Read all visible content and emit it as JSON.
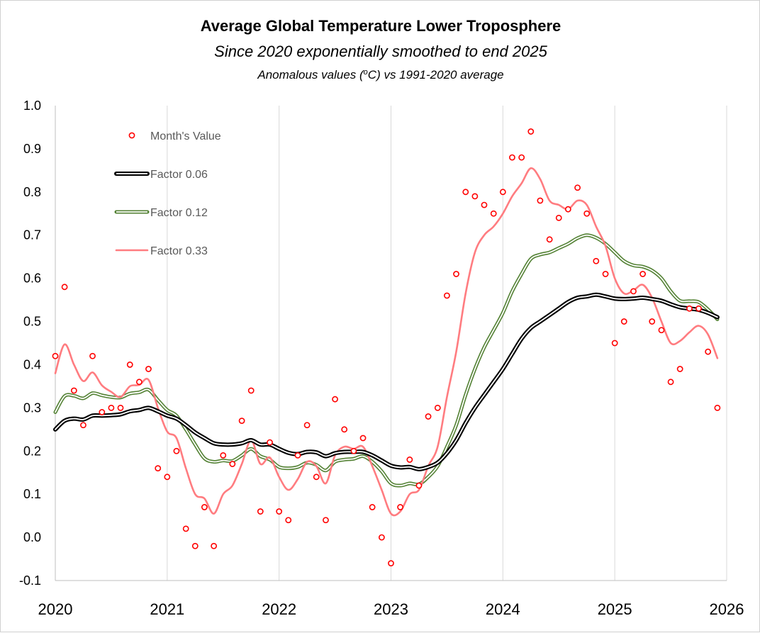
{
  "chart_data": {
    "type": "scatter+line",
    "title": "Average Global Temperature Lower Troposphere",
    "subtitle": "Since 2020 exponentially smoothed to end 2025",
    "subtitle2_prefix": "Anomalous values (",
    "subtitle2_unit_sup": "o",
    "subtitle2_unit": "C",
    "subtitle2_suffix": ") vs 1991-2020 average",
    "xlabel": "",
    "ylabel": "",
    "xlim": [
      2020,
      2026
    ],
    "ylim": [
      -0.1,
      1.0
    ],
    "x_ticks": [
      "2020",
      "2021",
      "2022",
      "2023",
      "2024",
      "2025",
      "2026"
    ],
    "y_ticks": [
      "1.0",
      "0.9",
      "0.8",
      "0.7",
      "0.6",
      "0.5",
      "0.4",
      "0.3",
      "0.2",
      "0.1",
      "0.0",
      "-0.1"
    ],
    "grid": "vertical",
    "legend_position": "top-left",
    "colors": {
      "points": "#ff0000",
      "factor_006": "#000000",
      "factor_012": "#548235",
      "factor_033": "#ff7c80",
      "grid": "#d9d9d9",
      "axis": "#bfbfbf"
    },
    "series": [
      {
        "name": "Month's Value",
        "kind": "points",
        "x": [
          2020.0,
          2020.083,
          2020.167,
          2020.25,
          2020.333,
          2020.417,
          2020.5,
          2020.583,
          2020.667,
          2020.75,
          2020.833,
          2020.917,
          2021.0,
          2021.083,
          2021.167,
          2021.25,
          2021.333,
          2021.417,
          2021.5,
          2021.583,
          2021.667,
          2021.75,
          2021.833,
          2021.917,
          2022.0,
          2022.083,
          2022.167,
          2022.25,
          2022.333,
          2022.417,
          2022.5,
          2022.583,
          2022.667,
          2022.75,
          2022.833,
          2022.917,
          2023.0,
          2023.083,
          2023.167,
          2023.25,
          2023.333,
          2023.417,
          2023.5,
          2023.583,
          2023.667,
          2023.75,
          2023.833,
          2023.917,
          2024.0,
          2024.083,
          2024.167,
          2024.25,
          2024.333,
          2024.417,
          2024.5,
          2024.583,
          2024.667,
          2024.75,
          2024.833,
          2024.917,
          2025.0,
          2025.083,
          2025.167,
          2025.25,
          2025.333,
          2025.417,
          2025.5,
          2025.583,
          2025.667,
          2025.75,
          2025.833,
          2025.917
        ],
        "values": [
          0.42,
          0.58,
          0.34,
          0.26,
          0.42,
          0.29,
          0.3,
          0.3,
          0.4,
          0.36,
          0.39,
          0.16,
          0.14,
          0.2,
          0.02,
          -0.02,
          0.07,
          -0.02,
          0.19,
          0.17,
          0.27,
          0.34,
          0.06,
          0.22,
          0.06,
          0.04,
          0.19,
          0.26,
          0.14,
          0.04,
          0.32,
          0.25,
          0.2,
          0.23,
          0.07,
          0.0,
          -0.06,
          0.07,
          0.18,
          0.12,
          0.28,
          0.3,
          0.56,
          0.61,
          0.8,
          0.79,
          0.77,
          0.75,
          0.8,
          0.88,
          0.88,
          0.94,
          0.78,
          0.69,
          0.74,
          0.76,
          0.81,
          0.75,
          0.64,
          0.61,
          0.45,
          0.5,
          0.57,
          0.61,
          0.5,
          0.48,
          0.36,
          0.39,
          0.53,
          0.53,
          0.43,
          0.3
        ]
      },
      {
        "name": "Factor 0.06",
        "kind": "line",
        "x": [
          2020.0,
          2020.083,
          2020.167,
          2020.25,
          2020.333,
          2020.417,
          2020.5,
          2020.583,
          2020.667,
          2020.75,
          2020.833,
          2020.917,
          2021.0,
          2021.083,
          2021.167,
          2021.25,
          2021.333,
          2021.417,
          2021.5,
          2021.583,
          2021.667,
          2021.75,
          2021.833,
          2021.917,
          2022.0,
          2022.083,
          2022.167,
          2022.25,
          2022.333,
          2022.417,
          2022.5,
          2022.583,
          2022.667,
          2022.75,
          2022.833,
          2022.917,
          2023.0,
          2023.083,
          2023.167,
          2023.25,
          2023.333,
          2023.417,
          2023.5,
          2023.583,
          2023.667,
          2023.75,
          2023.833,
          2023.917,
          2024.0,
          2024.083,
          2024.167,
          2024.25,
          2024.333,
          2024.417,
          2024.5,
          2024.583,
          2024.667,
          2024.75,
          2024.833,
          2024.917,
          2025.0,
          2025.083,
          2025.167,
          2025.25,
          2025.333,
          2025.417,
          2025.5,
          2025.583,
          2025.667,
          2025.75,
          2025.833,
          2025.917
        ],
        "values": [
          0.25,
          0.27,
          0.275,
          0.273,
          0.282,
          0.282,
          0.283,
          0.285,
          0.292,
          0.295,
          0.3,
          0.292,
          0.282,
          0.275,
          0.26,
          0.243,
          0.23,
          0.218,
          0.215,
          0.215,
          0.218,
          0.225,
          0.215,
          0.215,
          0.205,
          0.196,
          0.193,
          0.198,
          0.197,
          0.188,
          0.195,
          0.198,
          0.198,
          0.198,
          0.19,
          0.178,
          0.166,
          0.162,
          0.163,
          0.158,
          0.163,
          0.173,
          0.195,
          0.225,
          0.265,
          0.3,
          0.33,
          0.36,
          0.39,
          0.425,
          0.46,
          0.485,
          0.5,
          0.515,
          0.53,
          0.545,
          0.555,
          0.558,
          0.562,
          0.558,
          0.553,
          0.552,
          0.553,
          0.555,
          0.552,
          0.548,
          0.54,
          0.533,
          0.53,
          0.527,
          0.52,
          0.51
        ]
      },
      {
        "name": "Factor 0.12",
        "kind": "line",
        "x": [
          2020.0,
          2020.083,
          2020.167,
          2020.25,
          2020.333,
          2020.417,
          2020.5,
          2020.583,
          2020.667,
          2020.75,
          2020.833,
          2020.917,
          2021.0,
          2021.083,
          2021.167,
          2021.25,
          2021.333,
          2021.417,
          2021.5,
          2021.583,
          2021.667,
          2021.75,
          2021.833,
          2021.917,
          2022.0,
          2022.083,
          2022.167,
          2022.25,
          2022.333,
          2022.417,
          2022.5,
          2022.583,
          2022.667,
          2022.75,
          2022.833,
          2022.917,
          2023.0,
          2023.083,
          2023.167,
          2023.25,
          2023.333,
          2023.417,
          2023.5,
          2023.583,
          2023.667,
          2023.75,
          2023.833,
          2023.917,
          2024.0,
          2024.083,
          2024.167,
          2024.25,
          2024.333,
          2024.417,
          2024.5,
          2024.583,
          2024.667,
          2024.75,
          2024.833,
          2024.917,
          2025.0,
          2025.083,
          2025.167,
          2025.25,
          2025.333,
          2025.417,
          2025.5,
          2025.583,
          2025.667,
          2025.75,
          2025.833,
          2025.917
        ],
        "values": [
          0.29,
          0.327,
          0.328,
          0.322,
          0.334,
          0.329,
          0.325,
          0.324,
          0.333,
          0.336,
          0.342,
          0.318,
          0.295,
          0.282,
          0.25,
          0.215,
          0.183,
          0.175,
          0.178,
          0.177,
          0.19,
          0.205,
          0.188,
          0.18,
          0.163,
          0.16,
          0.163,
          0.173,
          0.168,
          0.155,
          0.175,
          0.18,
          0.182,
          0.188,
          0.175,
          0.153,
          0.125,
          0.12,
          0.125,
          0.123,
          0.14,
          0.165,
          0.21,
          0.26,
          0.33,
          0.39,
          0.44,
          0.48,
          0.52,
          0.57,
          0.61,
          0.645,
          0.655,
          0.66,
          0.67,
          0.68,
          0.693,
          0.7,
          0.694,
          0.68,
          0.66,
          0.64,
          0.63,
          0.627,
          0.618,
          0.6,
          0.57,
          0.548,
          0.547,
          0.545,
          0.528,
          0.505
        ]
      },
      {
        "name": "Factor 0.33",
        "kind": "line",
        "x": [
          2020.0,
          2020.083,
          2020.167,
          2020.25,
          2020.333,
          2020.417,
          2020.5,
          2020.583,
          2020.667,
          2020.75,
          2020.833,
          2020.917,
          2021.0,
          2021.083,
          2021.167,
          2021.25,
          2021.333,
          2021.417,
          2021.5,
          2021.583,
          2021.667,
          2021.75,
          2021.833,
          2021.917,
          2022.0,
          2022.083,
          2022.167,
          2022.25,
          2022.333,
          2022.417,
          2022.5,
          2022.583,
          2022.667,
          2022.75,
          2022.833,
          2022.917,
          2023.0,
          2023.083,
          2023.167,
          2023.25,
          2023.333,
          2023.417,
          2023.5,
          2023.583,
          2023.667,
          2023.75,
          2023.833,
          2023.917,
          2024.0,
          2024.083,
          2024.167,
          2024.25,
          2024.333,
          2024.417,
          2024.5,
          2024.583,
          2024.667,
          2024.75,
          2024.833,
          2024.917,
          2025.0,
          2025.083,
          2025.167,
          2025.25,
          2025.333,
          2025.417,
          2025.5,
          2025.583,
          2025.667,
          2025.75,
          2025.833,
          2025.917
        ],
        "values": [
          0.38,
          0.447,
          0.4,
          0.362,
          0.382,
          0.352,
          0.337,
          0.325,
          0.35,
          0.353,
          0.365,
          0.3,
          0.245,
          0.23,
          0.16,
          0.1,
          0.09,
          0.055,
          0.1,
          0.12,
          0.17,
          0.225,
          0.17,
          0.185,
          0.14,
          0.11,
          0.135,
          0.175,
          0.165,
          0.125,
          0.19,
          0.21,
          0.205,
          0.21,
          0.165,
          0.11,
          0.055,
          0.06,
          0.1,
          0.11,
          0.165,
          0.21,
          0.325,
          0.43,
          0.565,
          0.66,
          0.7,
          0.72,
          0.75,
          0.79,
          0.82,
          0.855,
          0.83,
          0.78,
          0.77,
          0.76,
          0.78,
          0.77,
          0.72,
          0.675,
          0.6,
          0.565,
          0.572,
          0.585,
          0.555,
          0.5,
          0.45,
          0.455,
          0.475,
          0.49,
          0.47,
          0.415
        ]
      }
    ]
  }
}
